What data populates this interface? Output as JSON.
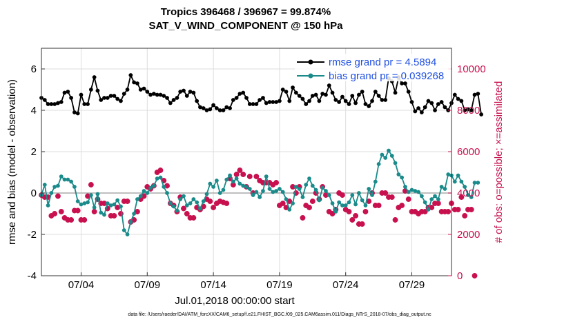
{
  "chart_data": {
    "type": "line",
    "title_line1": "Tropics 396468 / 396967 = 99.874%",
    "title_line2": "SAT_V_WIND_COMPONENT @ 150 hPa",
    "xlabel": "Jul.01,2018 00:00:00 start",
    "ylabel_left": "rmse and bias (model - observation)",
    "ylabel_right": "# of obs: o=possible; ×=assimilated",
    "ylim_left": [
      -4,
      7
    ],
    "ylim_right": [
      0,
      11000
    ],
    "yticks_left": [
      "-4",
      "-2",
      "0",
      "2",
      "4",
      "6"
    ],
    "yticks_right": [
      "0",
      "2000",
      "4000",
      "6000",
      "8000",
      "10000"
    ],
    "xlim_days": [
      0.5,
      31.5
    ],
    "xticks": [
      {
        "day": 3.5,
        "label": "07/04"
      },
      {
        "day": 8.5,
        "label": "07/09"
      },
      {
        "day": 13.5,
        "label": "07/14"
      },
      {
        "day": 18.5,
        "label": "07/19"
      },
      {
        "day": 23.5,
        "label": "07/24"
      },
      {
        "day": 28.5,
        "label": "07/29"
      }
    ],
    "x_start_day": 0.5,
    "x_step_days": 0.25,
    "footnote": "data file: /Users/raeder/DAI/ATM_forcXX/CAM6_setup/f.e21.FHIST_BGC.f09_025.CAM6assim.011/Diags_NTrS_2018-07/obs_diag_output.nc",
    "series": [
      {
        "name": "rmse",
        "legend": "rmse grand pr = 4.5894",
        "color": "#000000",
        "axis": "left",
        "values": [
          4.6,
          4.5,
          4.3,
          4.3,
          4.3,
          4.35,
          4.4,
          4.85,
          4.9,
          4.6,
          3.9,
          3.85,
          4.75,
          4.3,
          4.3,
          5.0,
          5.6,
          4.95,
          4.5,
          4.6,
          4.6,
          4.7,
          4.7,
          4.55,
          4.45,
          4.8,
          5.0,
          5.7,
          5.35,
          5.3,
          5.0,
          5.05,
          4.9,
          4.75,
          4.8,
          4.75,
          4.75,
          4.7,
          4.6,
          4.35,
          4.5,
          4.6,
          4.9,
          4.95,
          4.7,
          4.9,
          4.85,
          4.45,
          4.15,
          4.1,
          4.0,
          4.05,
          4.25,
          4.1,
          4.0,
          4.0,
          4.15,
          4.1,
          4.5,
          4.6,
          4.8,
          4.85,
          4.6,
          4.3,
          4.3,
          4.3,
          4.5,
          4.6,
          4.35,
          4.4,
          4.4,
          4.4,
          4.45,
          5.0,
          4.9,
          4.45,
          5.1,
          4.85,
          4.7,
          4.55,
          4.3,
          4.45,
          4.7,
          4.75,
          4.45,
          4.8,
          4.75,
          5.2,
          4.85,
          4.5,
          4.4,
          4.65,
          4.45,
          4.3,
          4.7,
          4.35,
          4.75,
          4.9,
          4.3,
          4.2,
          4.45,
          4.9,
          4.7,
          4.5,
          4.5,
          5.55,
          5.4,
          4.85,
          5.6,
          5.3,
          5.3,
          4.9,
          4.4,
          3.95,
          4.1,
          3.9,
          4.15,
          4.45,
          4.35,
          4.0,
          4.3,
          4.4,
          4.15,
          4.0,
          4.35,
          4.75,
          4.55,
          4.45,
          4.0,
          4.05,
          4.0,
          4.75,
          4.8,
          3.8
        ]
      },
      {
        "name": "bias",
        "legend": "bias grand pr = 0.039268",
        "color": "#1a8a8a",
        "axis": "left",
        "values": [
          -0.1,
          0.4,
          -0.6,
          0.0,
          0.3,
          0.35,
          0.8,
          0.65,
          0.65,
          0.55,
          0.3,
          -0.4,
          -0.55,
          -0.5,
          -0.45,
          -0.1,
          -0.7,
          -0.05,
          -0.95,
          -1.05,
          -0.5,
          -0.6,
          -0.55,
          -0.35,
          -0.65,
          -1.8,
          -2.0,
          -1.4,
          -1.0,
          -0.3,
          -0.15,
          0.1,
          0.0,
          0.25,
          0.35,
          0.7,
          0.75,
          0.3,
          0.0,
          -0.5,
          -0.65,
          -0.85,
          -0.3,
          -0.15,
          -0.6,
          -0.5,
          -0.3,
          -0.45,
          -0.75,
          -0.4,
          -0.05,
          0.45,
          0.3,
          0.6,
          0.0,
          0.15,
          0.65,
          0.85,
          0.55,
          0.7,
          0.45,
          0.35,
          0.3,
          0.2,
          -0.1,
          0.05,
          -0.2,
          0.1,
          0.8,
          0.2,
          0.05,
          0.1,
          0.2,
          0.05,
          -0.3,
          -0.8,
          -0.5,
          0.3,
          0.2,
          -0.2,
          0.4,
          0.7,
          0.35,
          0.15,
          -0.35,
          0.25,
          0.1,
          -0.1,
          -0.5,
          -0.9,
          -0.45,
          -0.6,
          -0.6,
          -0.45,
          -0.1,
          -0.55,
          0.0,
          -0.35,
          -0.6,
          0.2,
          -0.1,
          0.55,
          1.4,
          1.85,
          1.7,
          2.05,
          1.8,
          1.45,
          0.9,
          0.75,
          0.3,
          0.05,
          0.15,
          0.1,
          0.05,
          -0.15,
          -0.45,
          -0.8,
          -0.3,
          -0.15,
          -0.3,
          0.3,
          0.2,
          0.9,
          0.85,
          0.55,
          0.85,
          0.55,
          0.3,
          -0.1,
          -0.2,
          0.5,
          0.5
        ]
      },
      {
        "name": "possible",
        "color": "#c8104f",
        "axis": "right",
        "values": [
          3900,
          3800,
          3800,
          2900,
          3000,
          3850,
          3100,
          2800,
          2700,
          2700,
          3150,
          3150,
          2700,
          2700,
          3850,
          4400,
          3100,
          3700,
          3500,
          3500,
          3250,
          2900,
          2900,
          3300,
          3000,
          3600,
          3600,
          2600,
          2700,
          3100,
          3700,
          3850,
          4300,
          4200,
          4350,
          5000,
          5100,
          4600,
          4350,
          3500,
          3400,
          3100,
          3800,
          3250,
          3000,
          2800,
          2800,
          3300,
          3200,
          3350,
          3700,
          3600,
          3300,
          3500,
          3600,
          3550,
          3500,
          4700,
          4400,
          4900,
          5100,
          4900,
          4300,
          4800,
          4000,
          4800,
          4600,
          4500,
          4500,
          4500,
          4400,
          4500,
          3400,
          3500,
          3300,
          3600,
          4300,
          4000,
          4300,
          2800,
          3400,
          3300,
          3600,
          4000,
          3700,
          4300,
          3900,
          3100,
          3000,
          3200,
          4000,
          3900,
          3200,
          3100,
          2700,
          2900,
          2500,
          2500,
          3100,
          3600,
          4000,
          3400,
          3400,
          4000,
          4000,
          3800,
          3800,
          2700,
          3300,
          3400,
          4100,
          3700,
          3100,
          3100,
          3000,
          3100,
          3100,
          3300,
          3300,
          3500,
          3500,
          3100,
          3100,
          3100,
          3500,
          3200,
          3200,
          3800,
          2900,
          3200,
          3200,
          0
        ]
      },
      {
        "name": "assimilated",
        "color": "#c8104f",
        "axis": "right",
        "values": [
          3900,
          3800,
          3800,
          2900,
          3000,
          3850,
          3100,
          2800,
          2700,
          2700,
          3150,
          3150,
          2700,
          2700,
          3850,
          4400,
          3100,
          3700,
          3500,
          3500,
          3250,
          2900,
          2900,
          3300,
          3000,
          3600,
          3600,
          2600,
          2700,
          3100,
          3700,
          3850,
          4300,
          4200,
          4350,
          5000,
          5100,
          4600,
          4350,
          3500,
          3400,
          3100,
          3800,
          3250,
          3000,
          2800,
          2800,
          3300,
          3200,
          3350,
          3700,
          3600,
          3300,
          3500,
          3600,
          3550,
          3500,
          4700,
          4400,
          4900,
          5100,
          4900,
          4300,
          4800,
          4000,
          4800,
          4600,
          4500,
          4500,
          4500,
          4400,
          4500,
          3400,
          3500,
          3300,
          3600,
          4300,
          4000,
          4300,
          2800,
          3400,
          3300,
          3600,
          4000,
          3700,
          4300,
          3900,
          3100,
          3000,
          3200,
          4000,
          3900,
          3200,
          3100,
          2700,
          2900,
          2500,
          2500,
          3100,
          3600,
          4000,
          3400,
          3400,
          4000,
          4000,
          3800,
          3800,
          2700,
          3300,
          3400,
          4100,
          3700,
          3100,
          3100,
          3000,
          3100,
          3100,
          3300,
          3300,
          3500,
          3500,
          3100,
          3100,
          3100,
          3500,
          3200,
          3200,
          3800,
          2900,
          3200,
          3200,
          0
        ]
      }
    ]
  }
}
